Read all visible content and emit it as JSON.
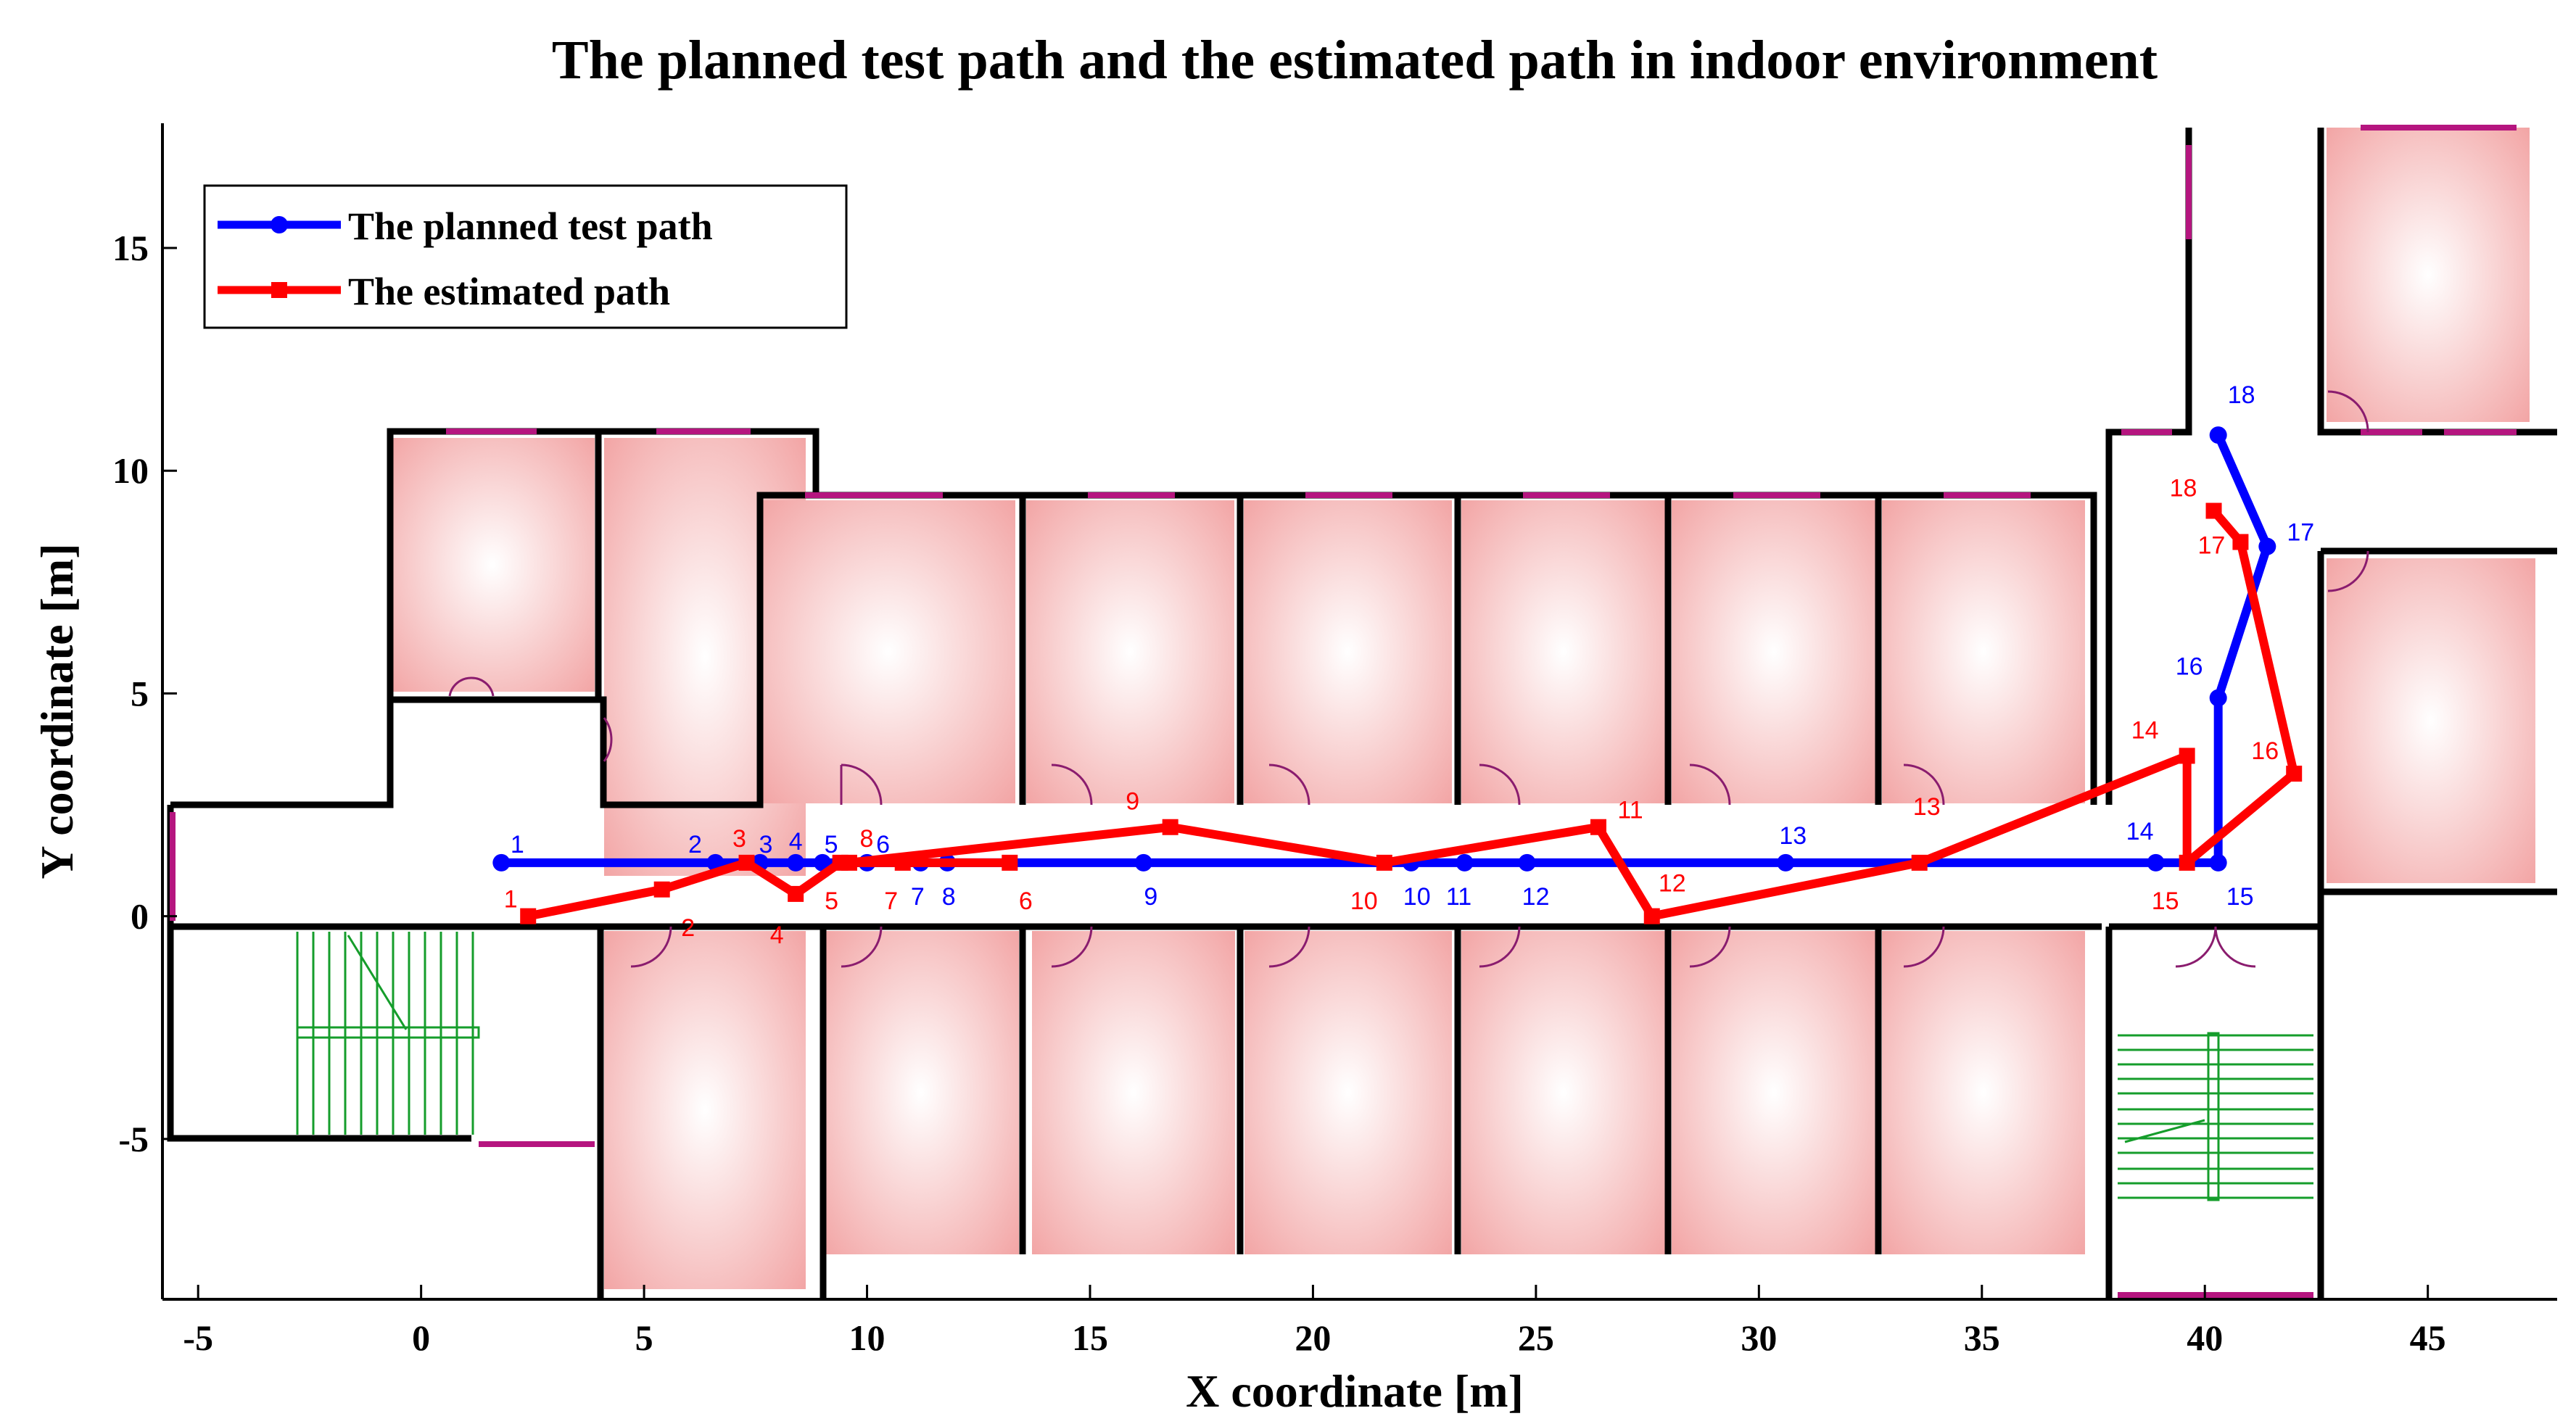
{
  "chart_data": {
    "type": "line",
    "title": "The planned test path and the estimated path in indoor environment",
    "xlabel": "X coordinate [m]",
    "ylabel": "Y coordinate [m]",
    "xlim": [
      -5.8,
      47.9
    ],
    "ylim": [
      -8.6,
      17.8
    ],
    "xticks": [
      -5,
      0,
      5,
      10,
      15,
      20,
      25,
      30,
      35,
      40,
      45
    ],
    "yticks": [
      -5,
      0,
      5,
      10,
      15
    ],
    "xtick_labels": [
      "-5",
      "0",
      "5",
      "10",
      "15",
      "20",
      "25",
      "30",
      "35",
      "40",
      "45"
    ],
    "ytick_labels": [
      "-5",
      "0",
      "5",
      "10",
      "15"
    ],
    "legend_position": "top-left",
    "series": [
      {
        "name": "The planned test path",
        "color": "#0000ff",
        "marker": "circle",
        "labels": [
          "1",
          "2",
          "3",
          "4",
          "5",
          "6",
          "7",
          "8",
          "9",
          "10",
          "11",
          "12",
          "13",
          "14",
          "15",
          "16",
          "17",
          "18"
        ],
        "x": [
          1.8,
          6.6,
          7.6,
          8.4,
          9.0,
          10.0,
          11.2,
          11.8,
          16.2,
          22.2,
          23.4,
          24.8,
          30.6,
          38.9,
          40.3,
          40.3,
          41.4,
          40.3
        ],
        "y": [
          1.2,
          1.2,
          1.2,
          1.2,
          1.2,
          1.2,
          1.2,
          1.2,
          1.2,
          1.2,
          1.2,
          1.2,
          1.2,
          1.2,
          1.2,
          4.9,
          8.3,
          10.8
        ]
      },
      {
        "name": "The estimated path",
        "color": "#ff0000",
        "marker": "plus",
        "labels": [
          "1",
          "2",
          "3",
          "4",
          "5",
          "6",
          "7",
          "8",
          "9",
          "10",
          "11",
          "12",
          "13",
          "14",
          "15",
          "16",
          "17",
          "18"
        ],
        "x": [
          2.4,
          5.4,
          7.3,
          8.4,
          9.4,
          13.2,
          10.8,
          9.6,
          16.8,
          21.6,
          26.4,
          27.6,
          33.6,
          39.6,
          39.6,
          42.0,
          40.8,
          40.2
        ],
        "y": [
          0.0,
          0.6,
          1.2,
          0.5,
          1.2,
          1.2,
          1.2,
          1.2,
          2.0,
          1.2,
          2.0,
          0.0,
          1.2,
          3.6,
          1.2,
          3.2,
          8.4,
          9.1
        ]
      }
    ]
  },
  "floorplan": {
    "wall_color": "#000000",
    "room_fill_center": "#ffffff",
    "room_fill_edge": "#f2a3a3",
    "window_color": "#b5157f",
    "stair_color": "#159d2b"
  }
}
